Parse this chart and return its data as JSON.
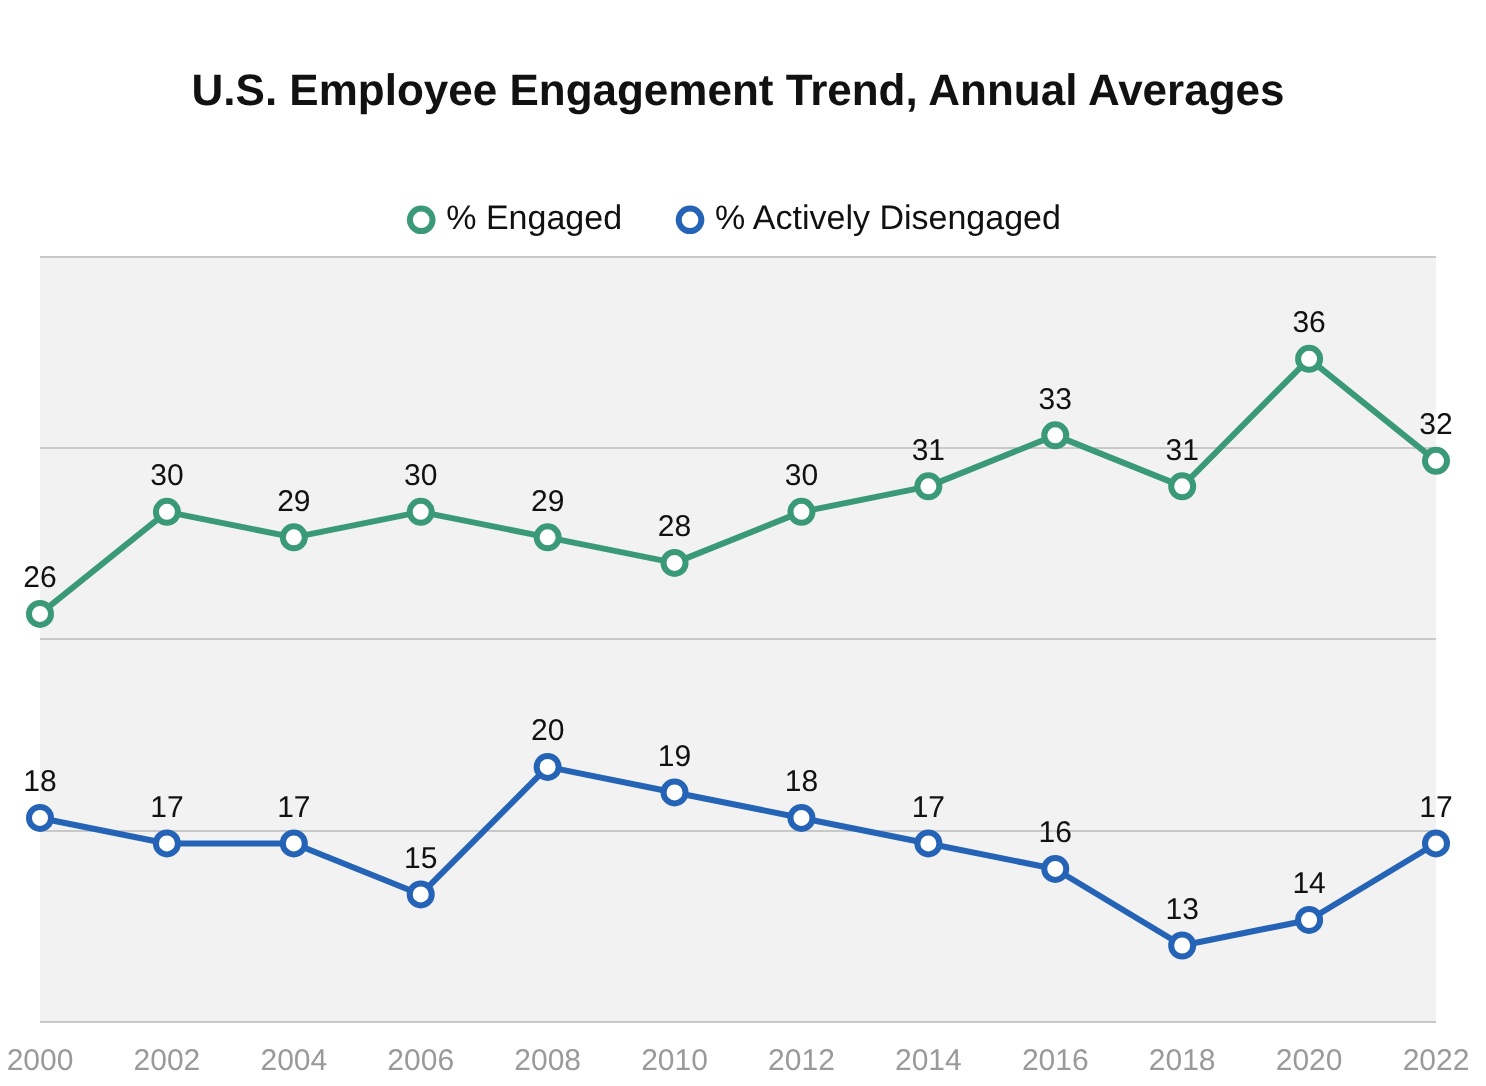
{
  "chart_data": {
    "type": "line",
    "title": "U.S. Employee Engagement Trend, Annual Averages",
    "categories": [
      "2000",
      "2002",
      "2004",
      "2006",
      "2008",
      "2010",
      "2012",
      "2014",
      "2016",
      "2018",
      "2020",
      "2022"
    ],
    "series": [
      {
        "name": "% Engaged",
        "color": "#3a9a78",
        "values": [
          26,
          30,
          29,
          30,
          29,
          28,
          30,
          31,
          33,
          31,
          36,
          32
        ]
      },
      {
        "name": "% Actively Disengaged",
        "color": "#2463b5",
        "values": [
          18,
          17,
          17,
          15,
          20,
          19,
          18,
          17,
          16,
          13,
          14,
          17
        ]
      }
    ],
    "ylim": [
      10,
      40
    ],
    "yticks": [
      {
        "value": 10,
        "label": null
      },
      {
        "value": 17.5,
        "label": null
      },
      {
        "value": 25,
        "label": null
      },
      {
        "value": 32.5,
        "label": null
      },
      {
        "value": 40,
        "label": null
      }
    ],
    "tick_labels": "x",
    "grid": "y",
    "legend": "top",
    "marker": "circle",
    "line_style": "solid",
    "data_labels": true
  }
}
